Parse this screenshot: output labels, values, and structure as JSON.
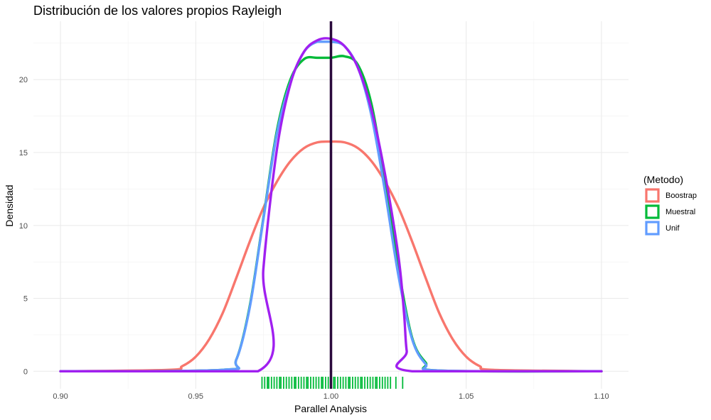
{
  "chart_data": {
    "type": "line",
    "title": "Distribución de los valores propios Rayleigh",
    "xlabel": "Parallel Analysis",
    "ylabel": "Densidad",
    "xlim": [
      0.89,
      1.11
    ],
    "ylim": [
      -1.2,
      24.0
    ],
    "x_ticks": [
      0.9,
      0.95,
      1.0,
      1.05,
      1.1
    ],
    "x_tick_labels": [
      "0.90",
      "0.95",
      "1.00",
      "1.05",
      "1.10"
    ],
    "y_ticks": [
      0,
      5,
      10,
      15,
      20
    ],
    "y_tick_labels": [
      "0",
      "5",
      "10",
      "15",
      "20"
    ],
    "grid": true,
    "legend": {
      "title": "(Metodo)",
      "position": "right",
      "entries": [
        {
          "label": "Boostrap",
          "color": "#F8766D"
        },
        {
          "label": "Muestral",
          "color": "#00BA38"
        },
        {
          "label": "Unif",
          "color": "#619CFF"
        }
      ]
    },
    "series": [
      {
        "name": "Boostrap",
        "color": "#F8766D",
        "x": [
          0.9,
          0.94,
          0.945,
          0.95,
          0.955,
          0.96,
          0.965,
          0.97,
          0.975,
          0.98,
          0.985,
          0.99,
          0.995,
          1.0,
          1.005,
          1.01,
          1.015,
          1.02,
          1.025,
          1.03,
          1.035,
          1.04,
          1.045,
          1.05,
          1.055,
          1.06,
          1.1
        ],
        "y": [
          0,
          0.1,
          0.35,
          1.0,
          2.2,
          4.0,
          6.4,
          8.9,
          11.2,
          13.0,
          14.4,
          15.3,
          15.7,
          15.75,
          15.7,
          15.3,
          14.4,
          13.0,
          11.2,
          8.9,
          6.4,
          4.0,
          2.2,
          1.0,
          0.35,
          0.1,
          0
        ]
      },
      {
        "name": "Muestral",
        "color": "#00BA38",
        "x": [
          0.9,
          0.96,
          0.965,
          0.97,
          0.975,
          0.98,
          0.985,
          0.99,
          0.995,
          1.0,
          1.005,
          1.01,
          1.015,
          1.02,
          1.025,
          1.03,
          1.035,
          1.04,
          1.1
        ],
        "y": [
          0,
          0.1,
          0.8,
          4.5,
          10.5,
          16.5,
          20.0,
          21.4,
          21.5,
          21.5,
          21.6,
          21.0,
          18.3,
          13.0,
          7.0,
          2.3,
          0.6,
          0.05,
          0
        ]
      },
      {
        "name": "Unif",
        "color": "#619CFF",
        "x": [
          0.9,
          0.96,
          0.965,
          0.97,
          0.975,
          0.98,
          0.985,
          0.99,
          0.995,
          1.0,
          1.005,
          1.01,
          1.015,
          1.02,
          1.025,
          1.03,
          1.035,
          1.04,
          1.1
        ],
        "y": [
          0,
          0.1,
          0.8,
          4.4,
          10.4,
          16.3,
          19.8,
          21.9,
          22.6,
          22.6,
          22.3,
          20.8,
          17.5,
          12.3,
          6.5,
          2.2,
          0.5,
          0.05,
          0
        ]
      },
      {
        "name": "",
        "color": "#A020F0",
        "x": [
          0.9,
          0.973,
          0.975,
          0.98,
          0.985,
          0.99,
          0.995,
          1.0,
          1.005,
          1.01,
          1.015,
          1.02,
          1.025,
          1.027,
          1.028,
          1.03,
          1.1
        ],
        "y": [
          0,
          0,
          7.0,
          15.2,
          19.7,
          21.9,
          22.7,
          22.8,
          22.3,
          20.8,
          17.9,
          13.5,
          7.8,
          4.0,
          1.4,
          0,
          0
        ]
      }
    ],
    "vline": {
      "x": 1.0,
      "color": "#2b0a3d"
    },
    "rug": {
      "color": "#00BA38",
      "x": [
        0.9745,
        0.9755,
        0.9765,
        0.977,
        0.978,
        0.979,
        0.98,
        0.981,
        0.9815,
        0.9825,
        0.9835,
        0.9845,
        0.9855,
        0.9865,
        0.987,
        0.988,
        0.989,
        0.99,
        0.991,
        0.9915,
        0.9925,
        0.9935,
        0.9945,
        0.9955,
        0.9965,
        0.997,
        0.998,
        0.999,
        1.0,
        1.001,
        1.0015,
        1.0025,
        1.0035,
        1.0045,
        1.0055,
        1.0065,
        1.007,
        1.008,
        1.009,
        1.01,
        1.011,
        1.0115,
        1.0125,
        1.0135,
        1.0145,
        1.0155,
        1.0165,
        1.017,
        1.018,
        1.019,
        1.02,
        1.021,
        1.022,
        1.024,
        1.0265
      ]
    }
  }
}
